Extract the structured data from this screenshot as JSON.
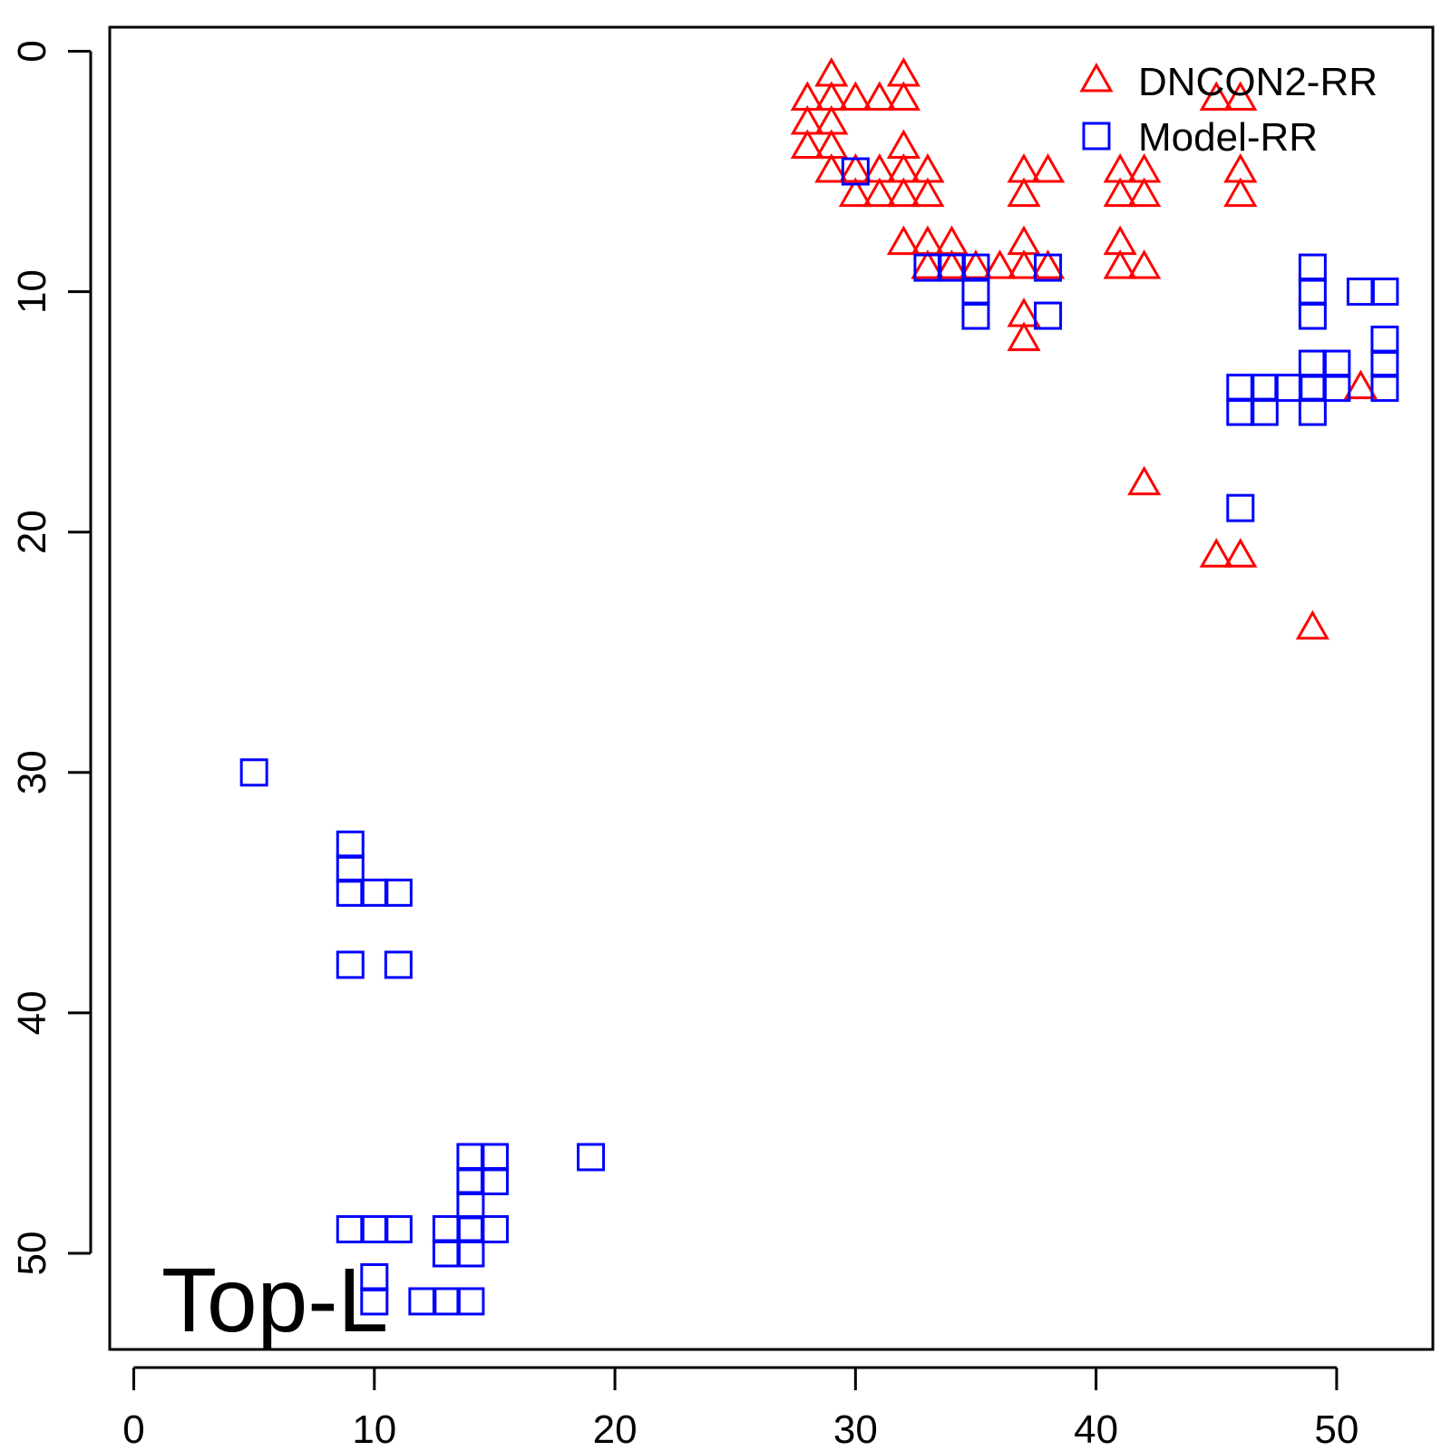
{
  "chart_data": {
    "type": "scatter",
    "title": "",
    "xlabel": "",
    "ylabel": "",
    "xlim": [
      -1,
      54
    ],
    "ylim": [
      -1,
      54
    ],
    "y_reversed": true,
    "grid": false,
    "legend_position": "top-right",
    "x_ticks": [
      0,
      10,
      20,
      30,
      40,
      50
    ],
    "y_ticks": [
      0,
      10,
      20,
      30,
      40,
      50
    ],
    "x_tick_labels": [
      "0",
      "10",
      "20",
      "30",
      "40",
      "50"
    ],
    "y_tick_labels": [
      "0",
      "10",
      "20",
      "30",
      "40",
      "50"
    ],
    "annotation": "Top-L",
    "series": [
      {
        "name": "DNCON2-RR",
        "marker": "triangle",
        "color": "#ff0000",
        "points": [
          [
            28,
            2
          ],
          [
            28,
            3
          ],
          [
            28,
            4
          ],
          [
            29,
            1
          ],
          [
            29,
            2
          ],
          [
            29,
            3
          ],
          [
            29,
            4
          ],
          [
            29,
            5
          ],
          [
            30,
            2
          ],
          [
            30,
            5
          ],
          [
            30,
            6
          ],
          [
            31,
            2
          ],
          [
            31,
            5
          ],
          [
            31,
            6
          ],
          [
            32,
            1
          ],
          [
            32,
            2
          ],
          [
            32,
            4
          ],
          [
            32,
            5
          ],
          [
            32,
            6
          ],
          [
            32,
            8
          ],
          [
            33,
            5
          ],
          [
            33,
            6
          ],
          [
            33,
            8
          ],
          [
            33,
            9
          ],
          [
            34,
            8
          ],
          [
            34,
            9
          ],
          [
            35,
            9
          ],
          [
            36,
            9
          ],
          [
            37,
            5
          ],
          [
            37,
            6
          ],
          [
            37,
            8
          ],
          [
            37,
            9
          ],
          [
            37,
            11
          ],
          [
            37,
            12
          ],
          [
            38,
            5
          ],
          [
            38,
            9
          ],
          [
            41,
            5
          ],
          [
            41,
            6
          ],
          [
            41,
            8
          ],
          [
            41,
            9
          ],
          [
            42,
            5
          ],
          [
            42,
            6
          ],
          [
            42,
            9
          ],
          [
            42,
            18
          ],
          [
            45,
            2
          ],
          [
            45,
            21
          ],
          [
            46,
            2
          ],
          [
            46,
            5
          ],
          [
            46,
            6
          ],
          [
            46,
            21
          ],
          [
            49,
            24
          ],
          [
            51,
            14
          ]
        ]
      },
      {
        "name": "Model-RR",
        "marker": "square",
        "color": "#0000ff",
        "points": [
          [
            5,
            30
          ],
          [
            9,
            33
          ],
          [
            9,
            34
          ],
          [
            9,
            35
          ],
          [
            9,
            38
          ],
          [
            9,
            49
          ],
          [
            10,
            35
          ],
          [
            10,
            49
          ],
          [
            10,
            51
          ],
          [
            10,
            52
          ],
          [
            11,
            35
          ],
          [
            11,
            38
          ],
          [
            11,
            49
          ],
          [
            12,
            52
          ],
          [
            13,
            49
          ],
          [
            13,
            50
          ],
          [
            13,
            52
          ],
          [
            14,
            46
          ],
          [
            14,
            47
          ],
          [
            14,
            48
          ],
          [
            14,
            49
          ],
          [
            14,
            50
          ],
          [
            14,
            52
          ],
          [
            15,
            46
          ],
          [
            15,
            47
          ],
          [
            15,
            49
          ],
          [
            19,
            46
          ],
          [
            30,
            5
          ],
          [
            33,
            9
          ],
          [
            34,
            9
          ],
          [
            35,
            9
          ],
          [
            35,
            10
          ],
          [
            35,
            11
          ],
          [
            38,
            9
          ],
          [
            38,
            11
          ],
          [
            46,
            14
          ],
          [
            46,
            15
          ],
          [
            46,
            19
          ],
          [
            47,
            14
          ],
          [
            47,
            15
          ],
          [
            48,
            14
          ],
          [
            49,
            9
          ],
          [
            49,
            10
          ],
          [
            49,
            11
          ],
          [
            49,
            13
          ],
          [
            49,
            14
          ],
          [
            49,
            15
          ],
          [
            50,
            13
          ],
          [
            50,
            14
          ],
          [
            51,
            10
          ],
          [
            52,
            10
          ],
          [
            52,
            12
          ],
          [
            52,
            13
          ],
          [
            52,
            14
          ]
        ]
      }
    ]
  }
}
